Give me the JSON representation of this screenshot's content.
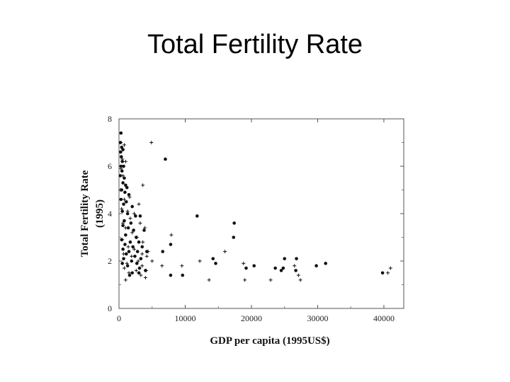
{
  "slide": {
    "title": "Total Fertility Rate"
  },
  "chart_data": {
    "type": "scatter",
    "title": "",
    "xlabel": "GDP per capita (1995US$)",
    "ylabel_line1": "Total Fertility Rate",
    "ylabel_line2": "(1995)",
    "xlim": [
      0,
      43000
    ],
    "ylim": [
      0,
      8
    ],
    "xticks": [
      0,
      10000,
      20000,
      30000,
      40000
    ],
    "xtick_labels": [
      "0",
      "10000",
      "20000",
      "30000",
      "40000"
    ],
    "yticks": [
      0,
      2,
      4,
      6,
      8
    ],
    "ytick_labels": [
      "0",
      "2",
      "4",
      "6",
      "8"
    ],
    "grid": false,
    "series": [
      {
        "name": "dots",
        "marker": "dot",
        "points": [
          [
            300,
            7.4
          ],
          [
            200,
            7.0
          ],
          [
            400,
            6.8
          ],
          [
            250,
            6.6
          ],
          [
            600,
            6.7
          ],
          [
            350,
            6.4
          ],
          [
            500,
            6.2
          ],
          [
            700,
            6.0
          ],
          [
            300,
            6.0
          ],
          [
            450,
            5.8
          ],
          [
            200,
            5.6
          ],
          [
            800,
            5.5
          ],
          [
            600,
            5.3
          ],
          [
            1000,
            5.2
          ],
          [
            1200,
            5.1
          ],
          [
            400,
            5.0
          ],
          [
            900,
            4.9
          ],
          [
            1500,
            4.8
          ],
          [
            300,
            4.6
          ],
          [
            1100,
            4.5
          ],
          [
            700,
            4.4
          ],
          [
            2000,
            4.3
          ],
          [
            500,
            4.1
          ],
          [
            1300,
            4.0
          ],
          [
            2500,
            3.9
          ],
          [
            3200,
            3.9
          ],
          [
            800,
            3.7
          ],
          [
            1800,
            3.6
          ],
          [
            600,
            3.5
          ],
          [
            1400,
            3.4
          ],
          [
            2200,
            3.3
          ],
          [
            3800,
            3.3
          ],
          [
            1000,
            3.1
          ],
          [
            2600,
            3.0
          ],
          [
            400,
            2.9
          ],
          [
            1700,
            2.8
          ],
          [
            3000,
            2.8
          ],
          [
            900,
            2.7
          ],
          [
            2100,
            2.6
          ],
          [
            3500,
            2.6
          ],
          [
            600,
            2.5
          ],
          [
            1500,
            2.4
          ],
          [
            2800,
            2.4
          ],
          [
            4200,
            2.4
          ],
          [
            1100,
            2.3
          ],
          [
            2400,
            2.2
          ],
          [
            700,
            2.1
          ],
          [
            3300,
            2.1
          ],
          [
            1900,
            2.0
          ],
          [
            500,
            1.9
          ],
          [
            2700,
            1.9
          ],
          [
            1300,
            1.8
          ],
          [
            3100,
            1.7
          ],
          [
            2000,
            1.5
          ],
          [
            3000,
            1.5
          ],
          [
            1600,
            1.4
          ],
          [
            4000,
            1.6
          ],
          [
            7000,
            6.3
          ],
          [
            11800,
            3.9
          ],
          [
            17400,
            3.6
          ],
          [
            17300,
            3.0
          ],
          [
            6600,
            2.4
          ],
          [
            7800,
            2.7
          ],
          [
            7800,
            1.4
          ],
          [
            9600,
            1.4
          ],
          [
            14200,
            2.1
          ],
          [
            14600,
            1.9
          ],
          [
            19200,
            1.7
          ],
          [
            20400,
            1.8
          ],
          [
            23600,
            1.7
          ],
          [
            24500,
            1.6
          ],
          [
            25000,
            2.1
          ],
          [
            24800,
            1.7
          ],
          [
            26700,
            1.6
          ],
          [
            26800,
            2.1
          ],
          [
            29800,
            1.8
          ],
          [
            31200,
            1.9
          ],
          [
            39800,
            1.5
          ]
        ]
      },
      {
        "name": "crosses",
        "marker": "plus",
        "points": [
          [
            300,
            7.0
          ],
          [
            800,
            6.9
          ],
          [
            4900,
            7.0
          ],
          [
            500,
            6.3
          ],
          [
            1000,
            6.2
          ],
          [
            300,
            5.9
          ],
          [
            600,
            5.6
          ],
          [
            3600,
            5.2
          ],
          [
            200,
            5.0
          ],
          [
            1600,
            4.7
          ],
          [
            800,
            4.6
          ],
          [
            3000,
            4.4
          ],
          [
            400,
            4.2
          ],
          [
            1300,
            4.1
          ],
          [
            2300,
            4.0
          ],
          [
            1700,
            3.8
          ],
          [
            600,
            3.6
          ],
          [
            3200,
            3.6
          ],
          [
            1000,
            3.4
          ],
          [
            3900,
            3.4
          ],
          [
            2000,
            3.2
          ],
          [
            2700,
            3.0
          ],
          [
            500,
            2.9
          ],
          [
            3600,
            2.8
          ],
          [
            1400,
            2.6
          ],
          [
            2300,
            2.5
          ],
          [
            4400,
            2.4
          ],
          [
            700,
            2.3
          ],
          [
            3500,
            2.3
          ],
          [
            1900,
            2.2
          ],
          [
            4200,
            2.2
          ],
          [
            2900,
            2.0
          ],
          [
            5000,
            2.0
          ],
          [
            1200,
            1.9
          ],
          [
            3500,
            1.8
          ],
          [
            800,
            1.7
          ],
          [
            2600,
            1.6
          ],
          [
            4100,
            1.6
          ],
          [
            1500,
            1.5
          ],
          [
            3300,
            1.4
          ],
          [
            4000,
            1.3
          ],
          [
            1000,
            1.2
          ],
          [
            7900,
            3.1
          ],
          [
            6500,
            1.8
          ],
          [
            9500,
            1.8
          ],
          [
            12200,
            2.0
          ],
          [
            16000,
            2.4
          ],
          [
            18800,
            1.9
          ],
          [
            19000,
            1.2
          ],
          [
            13600,
            1.2
          ],
          [
            22900,
            1.2
          ],
          [
            26500,
            1.8
          ],
          [
            27100,
            1.4
          ],
          [
            27400,
            1.2
          ],
          [
            41000,
            1.7
          ],
          [
            40600,
            1.5
          ]
        ]
      }
    ]
  }
}
